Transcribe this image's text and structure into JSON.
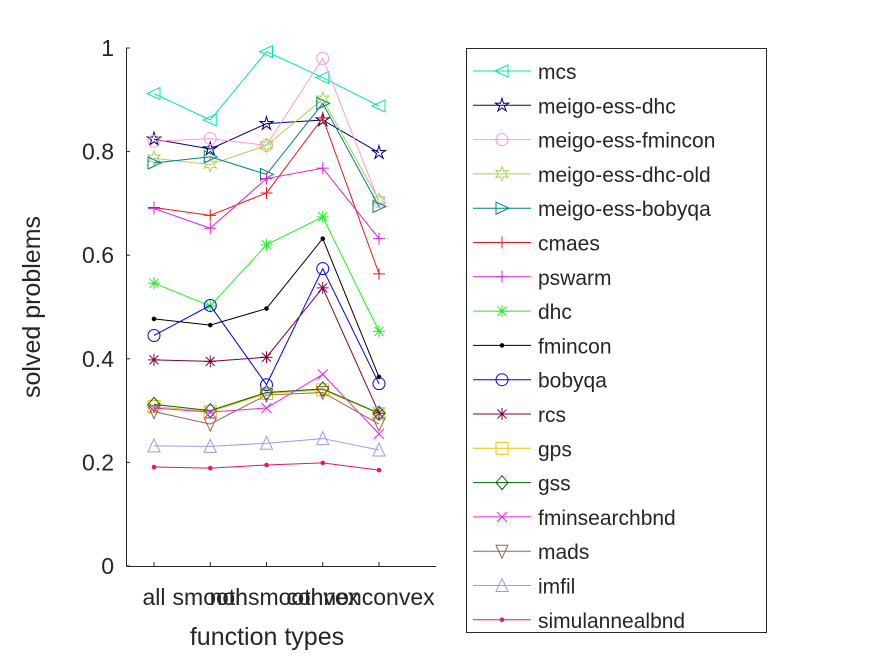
{
  "chart_data": {
    "type": "line",
    "xlabel": "function types",
    "ylabel": "solved problems",
    "categories": [
      "all",
      "smooth",
      "nonsmooth",
      "convex",
      "nonconvex"
    ],
    "ylim": [
      0,
      1
    ],
    "yticks": [
      "0",
      "0.2",
      "0.4",
      "0.6",
      "0.8",
      "1"
    ],
    "grid": false,
    "legend_position": "right-outside",
    "series": [
      {
        "name": "mcs",
        "color": "#00e6b0",
        "marker": "triangle-left",
        "values": [
          0.912,
          0.861,
          0.993,
          0.943,
          0.888
        ]
      },
      {
        "name": "meigo-ess-dhc",
        "color": "#000080",
        "marker": "star",
        "values": [
          0.824,
          0.805,
          0.854,
          0.861,
          0.798
        ]
      },
      {
        "name": "meigo-ess-fmincon",
        "color": "#ff99dd",
        "marker": "circle",
        "values": [
          0.82,
          0.825,
          0.812,
          0.98,
          0.703
        ]
      },
      {
        "name": "meigo-ess-dhc-old",
        "color": "#aad255",
        "marker": "hexagram",
        "values": [
          0.787,
          0.775,
          0.812,
          0.901,
          0.706
        ]
      },
      {
        "name": "meigo-ess-bobyqa",
        "color": "#008080",
        "marker": "triangle-right",
        "values": [
          0.778,
          0.79,
          0.756,
          0.893,
          0.694
        ]
      },
      {
        "name": "cmaes",
        "color": "#e61919",
        "marker": "plus",
        "values": [
          0.692,
          0.677,
          0.72,
          0.865,
          0.564
        ]
      },
      {
        "name": "pswarm",
        "color": "#dd22dd",
        "marker": "plus",
        "values": [
          0.69,
          0.652,
          0.748,
          0.768,
          0.632
        ]
      },
      {
        "name": "dhc",
        "color": "#22ee22",
        "marker": "asterisk",
        "values": [
          0.546,
          0.502,
          0.62,
          0.674,
          0.453
        ]
      },
      {
        "name": "fmincon",
        "color": "#000000",
        "marker": "dot",
        "values": [
          0.477,
          0.465,
          0.497,
          0.632,
          0.365
        ]
      },
      {
        "name": "bobyqa",
        "color": "#0000ee",
        "marker": "circle",
        "values": [
          0.445,
          0.503,
          0.35,
          0.574,
          0.352
        ]
      },
      {
        "name": "rcs",
        "color": "#800040",
        "marker": "asterisk",
        "values": [
          0.398,
          0.395,
          0.403,
          0.537,
          0.295
        ]
      },
      {
        "name": "gps",
        "color": "#e6c800",
        "marker": "square",
        "values": [
          0.308,
          0.298,
          0.333,
          0.34,
          0.294
        ]
      },
      {
        "name": "gss",
        "color": "#006600",
        "marker": "diamond",
        "values": [
          0.312,
          0.3,
          0.335,
          0.342,
          0.295
        ]
      },
      {
        "name": "fminsearchbnd",
        "color": "#ee22ee",
        "marker": "x",
        "values": [
          0.305,
          0.297,
          0.305,
          0.37,
          0.255
        ]
      },
      {
        "name": "mads",
        "color": "#a06050",
        "marker": "triangle-down",
        "values": [
          0.298,
          0.274,
          0.33,
          0.335,
          0.274
        ]
      },
      {
        "name": "imfil",
        "color": "#9999ee",
        "marker": "triangle-up",
        "values": [
          0.232,
          0.231,
          0.237,
          0.246,
          0.224
        ]
      },
      {
        "name": "simulannealbnd",
        "color": "#ee1166",
        "marker": "dot",
        "values": [
          0.191,
          0.189,
          0.195,
          0.199,
          0.185
        ]
      }
    ]
  }
}
